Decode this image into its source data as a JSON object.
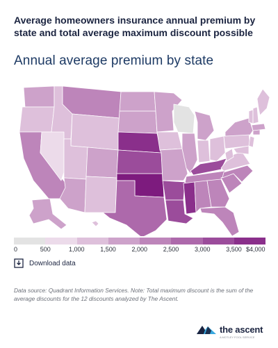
{
  "header": {
    "title": "Average homeowners insurance annual premium by state and total average maximum discount possible",
    "subtitle": "Annual average premium by state"
  },
  "map": {
    "type": "choropleth",
    "region": "United States",
    "scale_colors": [
      "#e3e3e3",
      "#ecdbea",
      "#dec0db",
      "#cda2ca",
      "#bd85ba",
      "#ad69ab",
      "#9b4c9b",
      "#8a2f8b",
      "#7d1b7e"
    ]
  },
  "legend": {
    "labels": [
      "0",
      "500",
      "1,000",
      "1,500",
      "2,000",
      "2,500",
      "3,000",
      "3,500",
      "$4,000"
    ]
  },
  "download": {
    "label": "Download data",
    "icon": "download-icon"
  },
  "note": "Data source: Quadrant Information Services. Note: Total maximum discount is the sum of the average discounts for the 12 discounts analyzed by The Ascent.",
  "brand": {
    "name": "the ascent",
    "tagline": "A MOTLEY FOOL SERVICE",
    "icon": "ascent-logo-icon"
  }
}
